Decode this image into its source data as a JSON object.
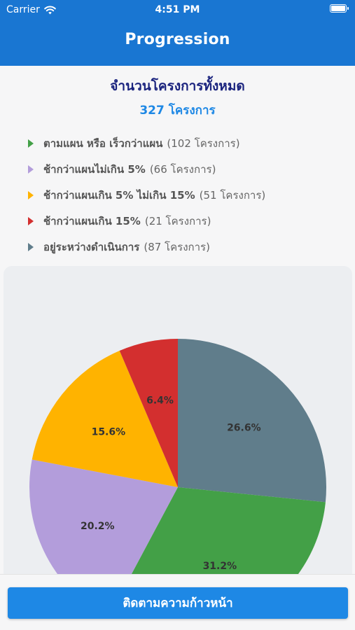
{
  "status_bar": {
    "carrier": "Carrier",
    "time": "4:51 PM",
    "wifi_icon": "wifi-icon",
    "battery_icon": "battery-icon"
  },
  "header": {
    "title": "Progression",
    "background_color": "#1976d2"
  },
  "summary": {
    "title": "จำนวนโครงการทั้งหมด",
    "total": "327 โครงการ"
  },
  "legend": [
    {
      "label": "ตามแผน หรือ เร็วกว่าแผน",
      "count": "(102 โครงการ)",
      "color": "#43a047"
    },
    {
      "label": "ช้ากว่าแผนไม่เกิน 5%",
      "count": "(66 โครงการ)",
      "color": "#b39ddb"
    },
    {
      "label": "ช้ากว่าแผนเกิน 5% ไม่เกิน 15%",
      "count": "(51 โครงการ)",
      "color": "#ffb300"
    },
    {
      "label": "ช้ากว่าแผนเกิน 15%",
      "count": "(21 โครงการ)",
      "color": "#d32f2f"
    },
    {
      "label": "อยู่ระหว่างดำเนินการ",
      "count": "(87 โครงการ)",
      "color": "#607d8b"
    }
  ],
  "chart_data": {
    "type": "pie",
    "categories": [
      "อยู่ระหว่างดำเนินการ",
      "ตามแผน หรือ เร็วกว่าแผน",
      "ช้ากว่าแผนไม่เกิน 5%",
      "ช้ากว่าแผนเกิน 5% ไม่เกิน 15%",
      "ช้ากว่าแผนเกิน 15%"
    ],
    "values": [
      87,
      102,
      66,
      51,
      21
    ],
    "data_labels": [
      "26.6%",
      "31.2%",
      "20.2%",
      "15.6%",
      "6.4%"
    ],
    "colors": [
      "#607d8b",
      "#43a047",
      "#b39ddb",
      "#ffb300",
      "#d32f2f"
    ]
  },
  "bottom": {
    "button_label": "ติดตามความก้าวหน้า"
  }
}
